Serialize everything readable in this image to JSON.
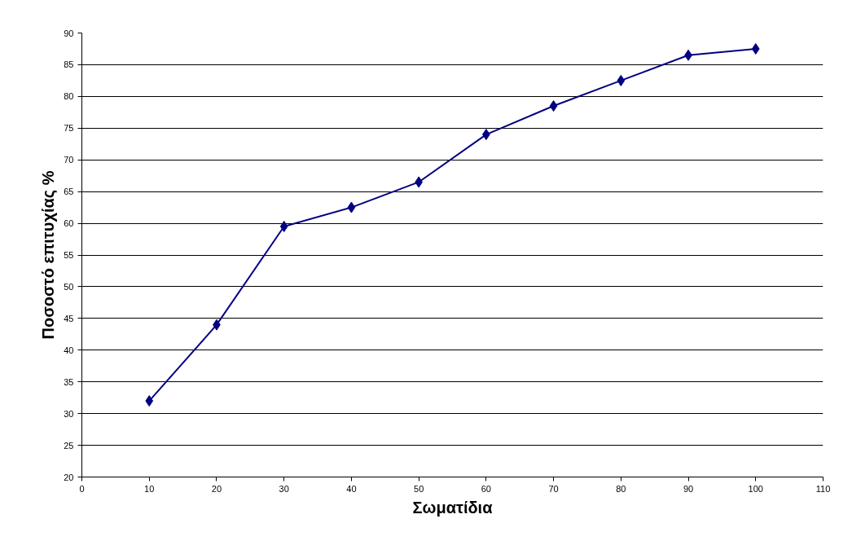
{
  "chart_data": {
    "type": "line",
    "xlabel": "Σωματίδια",
    "ylabel": "Ποσοστό επιτυχίας %",
    "x": [
      10,
      20,
      30,
      40,
      50,
      60,
      70,
      80,
      90,
      100
    ],
    "series": [
      {
        "color": "#000080",
        "values": [
          32,
          44,
          59.5,
          62.5,
          66.5,
          74,
          78.5,
          82.5,
          86.5,
          87.5
        ]
      }
    ],
    "xlim": [
      0,
      110
    ],
    "xticks": [
      0,
      10,
      20,
      30,
      40,
      50,
      60,
      70,
      80,
      90,
      100,
      110
    ],
    "ylim": [
      20,
      90
    ],
    "yticks": [
      20,
      25,
      30,
      35,
      40,
      45,
      50,
      55,
      60,
      65,
      70,
      75,
      80,
      85,
      90
    ],
    "grid": "y",
    "marker": "diamond"
  }
}
